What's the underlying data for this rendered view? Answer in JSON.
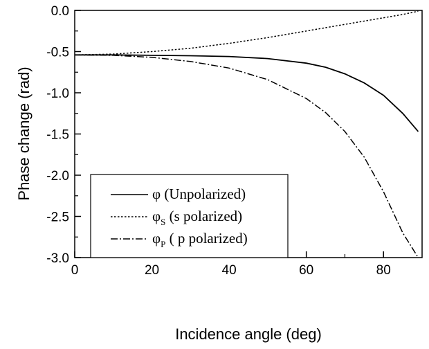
{
  "chart_data": {
    "type": "line",
    "title": "",
    "xlabel": "Incidence angle (deg)",
    "ylabel": "Phase change (rad)",
    "xlim": [
      0,
      90
    ],
    "ylim": [
      -3.0,
      0.0
    ],
    "x_ticks": [
      "0",
      "20",
      "40",
      "60",
      "80"
    ],
    "y_ticks": [
      "0.0",
      "-0.5",
      "-1.0",
      "-1.5",
      "-2.0",
      "-2.5",
      "-3.0"
    ],
    "grid": false,
    "legend_position": "bottom-left",
    "series": [
      {
        "name": "φ (Unpolarized)",
        "style": "solid",
        "color": "#000000",
        "x": [
          0,
          10,
          20,
          30,
          40,
          50,
          60,
          65,
          70,
          75,
          80,
          85,
          89
        ],
        "y": [
          -0.54,
          -0.54,
          -0.545,
          -0.55,
          -0.56,
          -0.585,
          -0.64,
          -0.69,
          -0.77,
          -0.88,
          -1.03,
          -1.25,
          -1.47
        ]
      },
      {
        "name": "φS (s polarized)",
        "style": "dotted",
        "color": "#000000",
        "x": [
          0,
          10,
          20,
          30,
          40,
          50,
          60,
          70,
          80,
          85,
          89
        ],
        "y": [
          -0.54,
          -0.53,
          -0.5,
          -0.46,
          -0.4,
          -0.33,
          -0.25,
          -0.17,
          -0.09,
          -0.05,
          -0.01
        ]
      },
      {
        "name": "φP (p polarized)",
        "style": "dashdot",
        "color": "#000000",
        "x": [
          0,
          10,
          20,
          30,
          40,
          50,
          60,
          65,
          70,
          75,
          80,
          85,
          89
        ],
        "y": [
          -0.54,
          -0.545,
          -0.57,
          -0.62,
          -0.7,
          -0.84,
          -1.07,
          -1.24,
          -1.47,
          -1.78,
          -2.2,
          -2.7,
          -3.0
        ]
      }
    ]
  },
  "legend": {
    "entries": [
      {
        "symbol": "φ",
        "sub": "",
        "text": " (Unpolarized)",
        "style": "solid"
      },
      {
        "symbol": "φ",
        "sub": "S",
        "text": " (s polarized)",
        "style": "dotted"
      },
      {
        "symbol": "φ",
        "sub": "P",
        "text": " ( p polarized)",
        "style": "dashdot"
      }
    ]
  }
}
